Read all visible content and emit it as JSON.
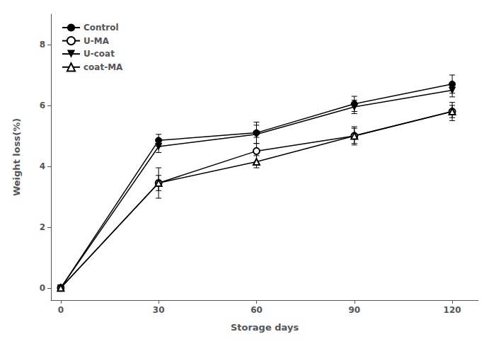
{
  "chart_data": {
    "type": "line",
    "xlabel": "Storage days",
    "ylabel": "Weight loss(%)",
    "x": [
      0,
      30,
      60,
      90,
      120
    ],
    "series": [
      {
        "name": "Control",
        "color": "black",
        "marker": "circle",
        "values": [
          0.0,
          4.85,
          5.1,
          6.05,
          6.7
        ],
        "yerr": [
          0.05,
          0.2,
          0.35,
          0.25,
          0.3
        ]
      },
      {
        "name": "U-MA",
        "color": "black",
        "marker": "open-circle",
        "values": [
          0.0,
          3.45,
          4.5,
          5.0,
          5.8
        ],
        "yerr": [
          0.05,
          0.5,
          0.45,
          0.3,
          0.2
        ]
      },
      {
        "name": "U-coat",
        "color": "black",
        "marker": "triangle-down",
        "values": [
          0.0,
          4.65,
          5.05,
          5.95,
          6.5
        ],
        "yerr": [
          0.05,
          0.2,
          0.3,
          0.22,
          0.22
        ]
      },
      {
        "name": "coat-MA",
        "color": "black",
        "marker": "open-triangle-up",
        "values": [
          0.0,
          3.45,
          4.15,
          5.0,
          5.8
        ],
        "yerr": [
          0.05,
          0.25,
          0.2,
          0.25,
          0.3
        ]
      }
    ],
    "xlim": [
      -3,
      128
    ],
    "xticks": [
      0,
      30,
      60,
      90,
      120
    ],
    "ylim": [
      -0.4,
      9.0
    ],
    "yticks": [
      0,
      2,
      4,
      6,
      8
    ],
    "grid": false,
    "legend": "upper left"
  }
}
